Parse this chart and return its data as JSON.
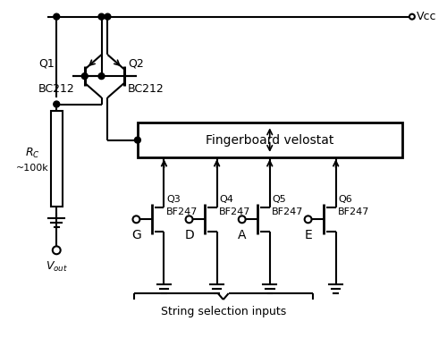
{
  "title": "",
  "background_color": "#ffffff",
  "line_color": "#000000",
  "vcc_label": "Vcc",
  "vout_label": "V_out",
  "rc_label1": "R_C",
  "rc_label2": "~100k",
  "q1_label1": "Q1",
  "q1_label2": "BC212",
  "q2_label1": "Q2",
  "q2_label2": "BC212",
  "box_label": "Fingerboard velostat",
  "jfet_labels": [
    [
      "Q3",
      "BF247"
    ],
    [
      "Q4",
      "BF247"
    ],
    [
      "Q5",
      "BF247"
    ],
    [
      "Q6",
      "BF247"
    ]
  ],
  "string_labels": [
    "G",
    "D",
    "A",
    "E"
  ],
  "string_selection_label": "String selection inputs",
  "figsize": [
    5.0,
    3.97
  ],
  "dpi": 100
}
